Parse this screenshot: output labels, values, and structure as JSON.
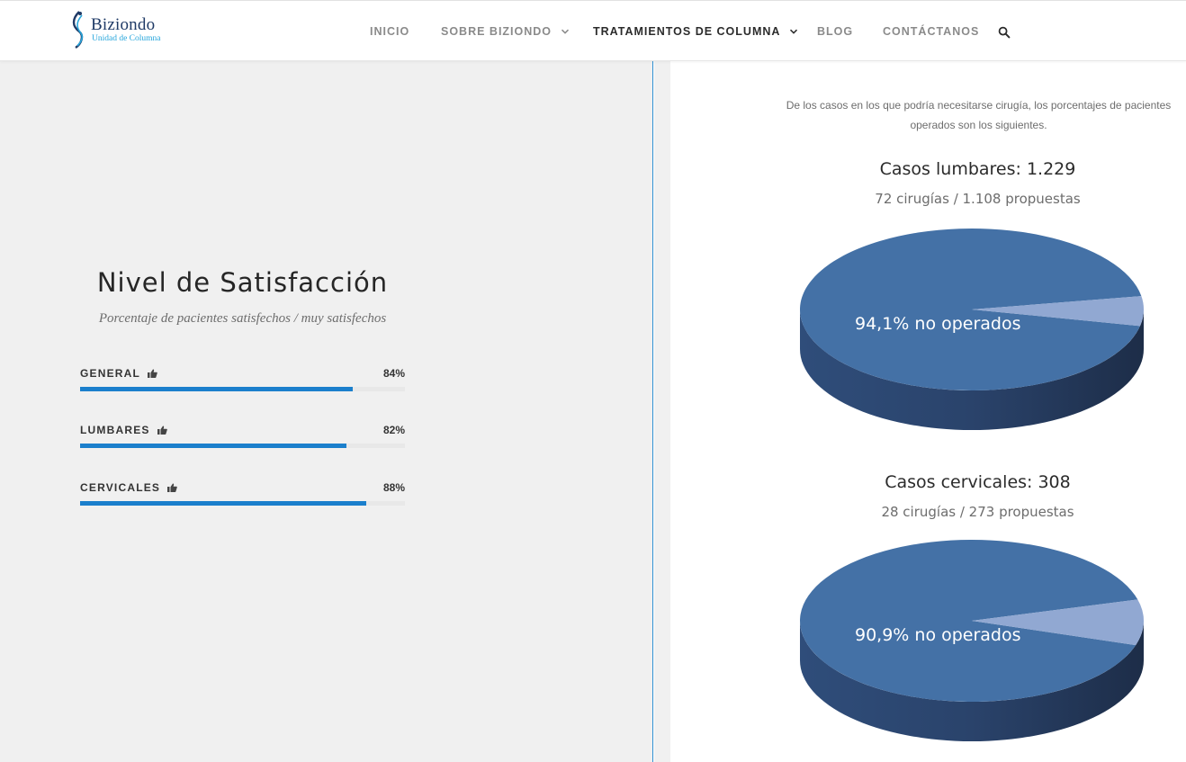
{
  "header": {
    "logo_name": "Biziondo",
    "logo_subtitle": "Unidad de Columna",
    "nav": [
      {
        "label": "INICIO",
        "has_dropdown": false,
        "active": false
      },
      {
        "label": "SOBRE BIZIONDO",
        "has_dropdown": true,
        "active": false
      },
      {
        "label": "TRATAMIENTOS DE COLUMNA",
        "has_dropdown": true,
        "active": true
      },
      {
        "label": "BLOG",
        "has_dropdown": false,
        "active": false
      },
      {
        "label": "CONTÁCTANOS",
        "has_dropdown": false,
        "active": false
      }
    ],
    "search_icon": "search-icon"
  },
  "satisfaction": {
    "title": "Nivel de Satisfacción",
    "subtitle": "Porcentaje de pacientes satisfechos / muy satisfechos",
    "bars": [
      {
        "label": "GENERAL",
        "percent_label": "84%",
        "value": 84
      },
      {
        "label": "LUMBARES",
        "percent_label": "82%",
        "value": 82
      },
      {
        "label": "CERVICALES",
        "percent_label": "88%",
        "value": 88
      }
    ],
    "bar_color": "#1b7fcc",
    "icon": "thumbs-up-icon"
  },
  "surgery": {
    "intro": "De los casos en los que podría necesitarse cirugía, los porcentajes de pacientes operados son los siguientes.",
    "cases": [
      {
        "title": "Casos lumbares: 1.229",
        "subtitle": "72 cirugías / 1.108 propuestas",
        "label": "94,1% no operados",
        "not_operated_pct": 94.1
      },
      {
        "title": "Casos cervicales: 308",
        "subtitle": "28 cirugías / 273 propuestas",
        "label": "90,9% no operados",
        "not_operated_pct": 90.9
      }
    ],
    "colors": {
      "main": "#4471a6",
      "slice": "#91a8d2",
      "side_dark": "#1d2d48",
      "side_mid": "#2f4d7a"
    }
  }
}
